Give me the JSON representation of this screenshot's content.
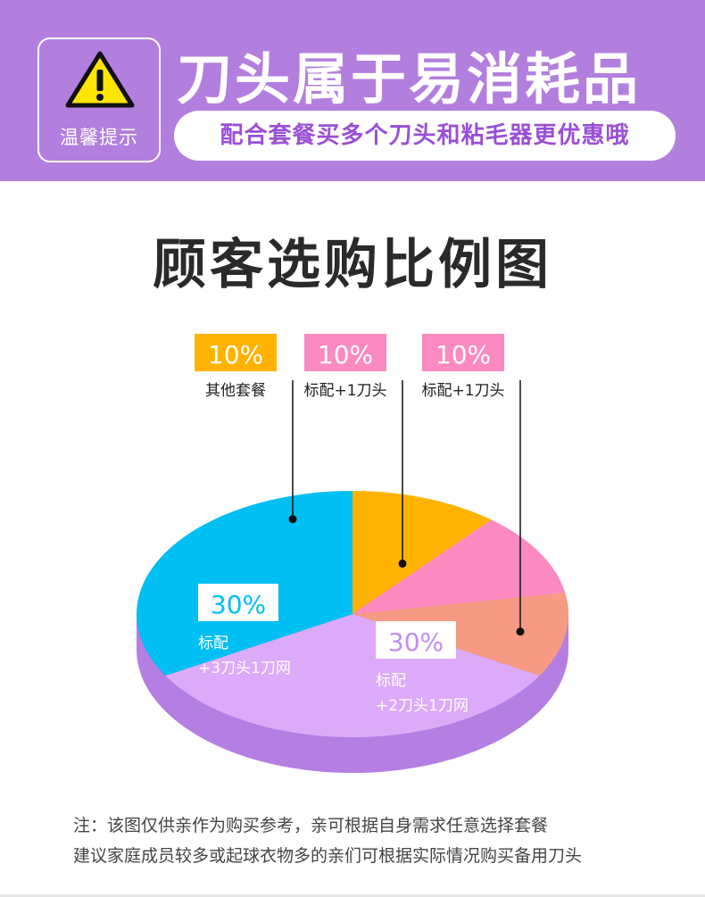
{
  "banner": {
    "badge_label": "温馨提示",
    "headline": "刀头属于易消耗品",
    "subline": "配合套餐买多个刀头和粘毛器更优惠哦",
    "colors": {
      "background": "#b27fde",
      "subline_text": "#9a4fd6",
      "warning": "#ffe600"
    }
  },
  "title": "顾客选购比例图",
  "chart_data": {
    "type": "pie",
    "style": "3d",
    "slices": [
      {
        "label": "其他套餐",
        "value_label": "10%",
        "value": 10,
        "color": "#ffb300",
        "label_color": "#ffb300"
      },
      {
        "label": "标配+1刀头",
        "value_label": "10%",
        "value": 10,
        "color": "#fb8ac0",
        "label_color": "#fb8ac0"
      },
      {
        "label": "标配+1刀头",
        "value_label": "10%",
        "value": 10,
        "color": "#f79a83",
        "label_color": "#fb8ac0"
      },
      {
        "label_lines": [
          "标配",
          "+2刀头1刀网"
        ],
        "value_label": "30%",
        "value": 30,
        "color": "#dcaaf8",
        "label_color": "#ffffff"
      },
      {
        "label_lines": [
          "标配",
          "+3刀头1刀网"
        ],
        "value_label": "30%",
        "value": 30,
        "color": "#00bff2",
        "label_color": "#ffffff"
      }
    ],
    "side_color": "#b57ee3"
  },
  "notes": [
    "注：该图仅供亲作为购买参考，亲可根据自身需求任意选择套餐",
    "建议家庭成员较多或起球衣物多的亲们可根据实际情况购买备用刀头"
  ]
}
